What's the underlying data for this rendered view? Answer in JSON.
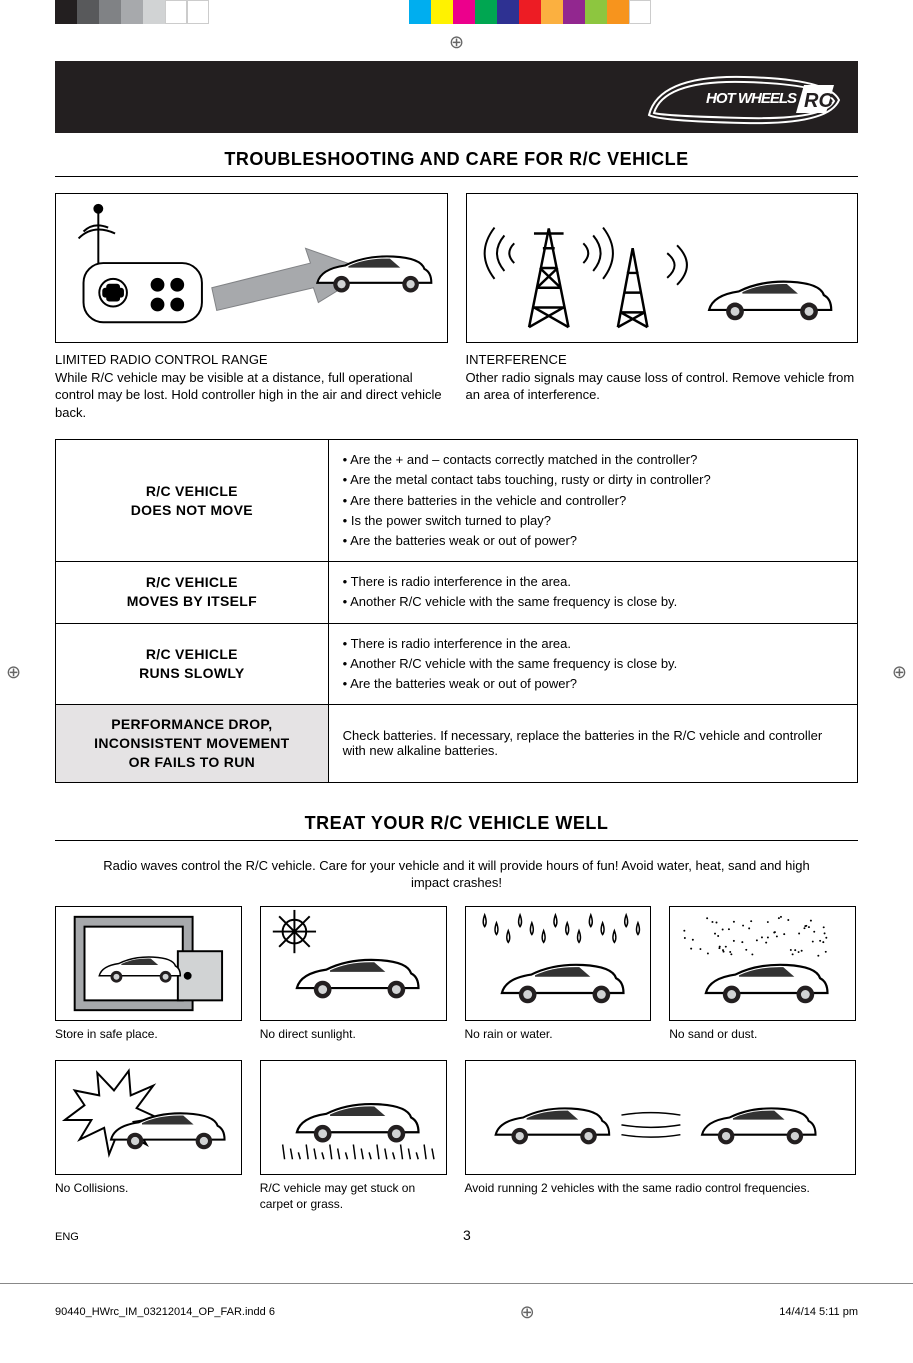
{
  "colorbar": [
    "#231f20",
    "#58595b",
    "#808285",
    "#a7a9ac",
    "#d1d3d4",
    "#ffffff",
    "#ffffff",
    "transparent",
    "transparent",
    "transparent",
    "transparent",
    "#00aeef",
    "#fff200",
    "#ec008c",
    "#00a651",
    "#2e3192",
    "#ed1c24",
    "#fbb040",
    "#92278f",
    "#8dc63f",
    "#f7941d",
    "#ffffff"
  ],
  "logo_text": "HOT WHEELS RC",
  "section1": {
    "title": "TROUBLESHOOTING AND CARE FOR R/C VEHICLE",
    "left": {
      "title": "LIMITED RADIO CONTROL RANGE",
      "body": "While R/C vehicle may be visible at a distance, full operational control may be lost. Hold controller high in the air and direct vehicle back."
    },
    "right": {
      "title": "INTERFERENCE",
      "body": "Other radio signals may cause loss of control. Remove vehicle from an area of interference."
    }
  },
  "table": {
    "rows": [
      {
        "heading": "R/C VEHICLE\nDOES NOT MOVE",
        "shade": false,
        "items": [
          "Are the + and – contacts correctly matched in the controller?",
          "Are the metal contact tabs touching, rusty or dirty in controller?",
          "Are there batteries in the vehicle and controller?",
          "Is the power switch turned to play?",
          "Are the batteries weak or out of power?"
        ]
      },
      {
        "heading": "R/C VEHICLE\nMOVES BY ITSELF",
        "shade": false,
        "items": [
          "There is radio interference in the area.",
          "Another R/C vehicle with the same frequency is close by."
        ]
      },
      {
        "heading": "R/C VEHICLE\nRUNS SLOWLY",
        "shade": false,
        "items": [
          "There is radio interference in the area.",
          "Another R/C vehicle with the same frequency is close by.",
          "Are the batteries weak or out of power?"
        ]
      },
      {
        "heading": "PERFORMANCE DROP,\nINCONSISTENT MOVEMENT\nOR FAILS TO RUN",
        "shade": true,
        "plain": "Check batteries. If necessary, replace the batteries in the R/C vehicle and controller with new alkaline batteries."
      }
    ]
  },
  "section2": {
    "title": "TREAT YOUR R/C VEHICLE WELL",
    "intro": "Radio waves control the R/C vehicle. Care for your vehicle and it will provide hours of fun! Avoid water, heat, sand and high impact crashes!",
    "items": [
      {
        "caption": "Store in safe place.",
        "kind": "store"
      },
      {
        "caption": "No direct sunlight.",
        "kind": "sun"
      },
      {
        "caption": "No rain or water.",
        "kind": "rain"
      },
      {
        "caption": "No sand or dust.",
        "kind": "sand"
      },
      {
        "caption": "No Collisions.",
        "kind": "collision"
      },
      {
        "caption": "R/C vehicle may get stuck on carpet or grass.",
        "kind": "grass"
      },
      {
        "caption": "Avoid running 2 vehicles with the same radio control frequencies.",
        "kind": "two",
        "wide": true
      }
    ]
  },
  "footer": {
    "lang": "ENG",
    "page": "3"
  },
  "print_footer": {
    "file": "90440_HWrc_IM_03212014_OP_FAR.indd   6",
    "date": "14/4/14   5:11 pm"
  },
  "colors": {
    "text": "#000000",
    "header_bg": "#231f20",
    "shade_bg": "#e5e3e4",
    "rule": "#000000"
  }
}
